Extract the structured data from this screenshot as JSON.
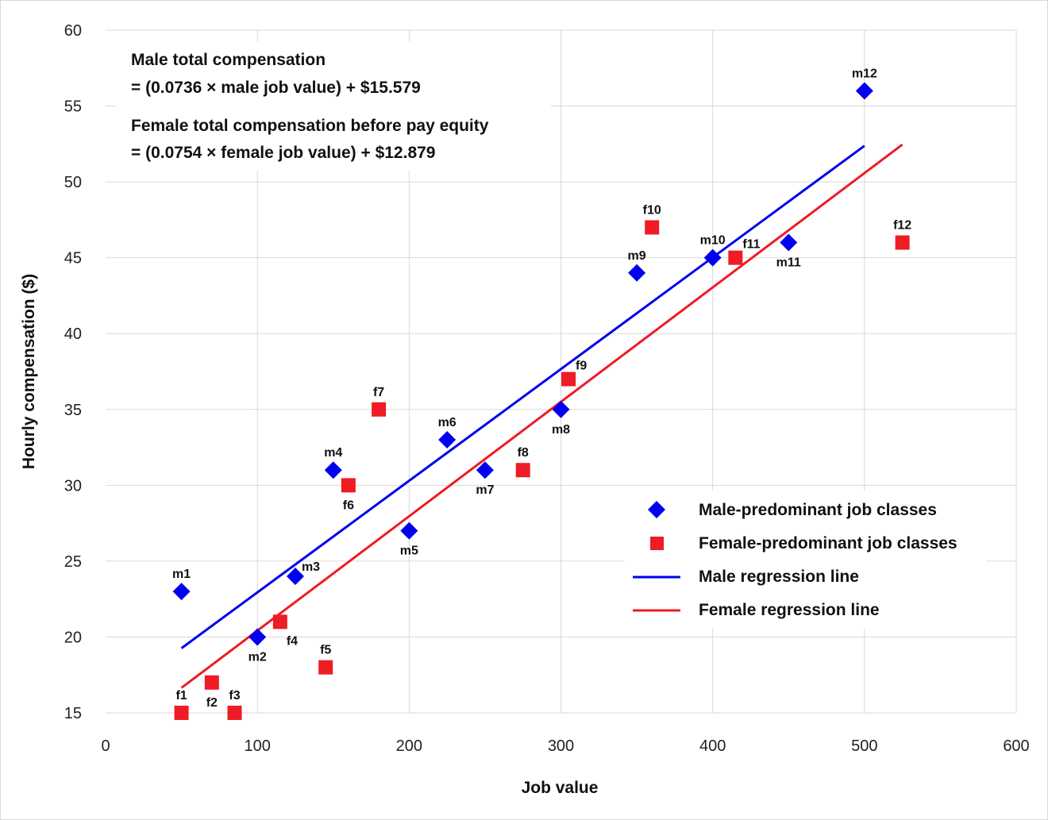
{
  "chart_data": {
    "type": "scatter",
    "xlabel": "Job value",
    "ylabel": "Hourly compensation ($)",
    "xlim": [
      0,
      600
    ],
    "ylim": [
      15,
      60
    ],
    "x_ticks": [
      0,
      100,
      200,
      300,
      400,
      500,
      600
    ],
    "y_ticks": [
      15,
      20,
      25,
      30,
      35,
      40,
      45,
      50,
      55,
      60
    ],
    "grid": true,
    "legend_position": "lower-right",
    "colors": {
      "male": "#0000ee",
      "female": "#ee1c24"
    },
    "annotations": [
      "Male total compensation",
      "= (0.0736 × male job value) + $15.579",
      "Female total compensation before pay equity",
      "= (0.0754 × female job value) + $12.879"
    ],
    "series": [
      {
        "name": "Male-predominant job classes",
        "marker": "diamond",
        "points": [
          {
            "label": "m1",
            "x": 50,
            "y": 23
          },
          {
            "label": "m2",
            "x": 100,
            "y": 20
          },
          {
            "label": "m3",
            "x": 125,
            "y": 24
          },
          {
            "label": "m4",
            "x": 150,
            "y": 31
          },
          {
            "label": "m5",
            "x": 200,
            "y": 27
          },
          {
            "label": "m6",
            "x": 225,
            "y": 33
          },
          {
            "label": "m7",
            "x": 250,
            "y": 31
          },
          {
            "label": "m8",
            "x": 300,
            "y": 35
          },
          {
            "label": "m9",
            "x": 350,
            "y": 44
          },
          {
            "label": "m10",
            "x": 400,
            "y": 45
          },
          {
            "label": "m11",
            "x": 450,
            "y": 46
          },
          {
            "label": "m12",
            "x": 500,
            "y": 56
          }
        ]
      },
      {
        "name": "Female-predominant job classes",
        "marker": "square",
        "points": [
          {
            "label": "f1",
            "x": 50,
            "y": 15
          },
          {
            "label": "f2",
            "x": 70,
            "y": 17
          },
          {
            "label": "f3",
            "x": 85,
            "y": 15
          },
          {
            "label": "f4",
            "x": 115,
            "y": 21
          },
          {
            "label": "f5",
            "x": 145,
            "y": 18
          },
          {
            "label": "f6",
            "x": 160,
            "y": 30
          },
          {
            "label": "f7",
            "x": 180,
            "y": 35
          },
          {
            "label": "f8",
            "x": 275,
            "y": 31
          },
          {
            "label": "f9",
            "x": 305,
            "y": 37
          },
          {
            "label": "f10",
            "x": 360,
            "y": 47
          },
          {
            "label": "f11",
            "x": 415,
            "y": 45
          },
          {
            "label": "f12",
            "x": 525,
            "y": 46
          }
        ]
      },
      {
        "name": "Male regression line",
        "type": "line",
        "slope": 0.0736,
        "intercept": 15.579,
        "x_range": [
          50,
          500
        ]
      },
      {
        "name": "Female regression line",
        "type": "line",
        "slope": 0.0754,
        "intercept": 12.879,
        "x_range": [
          50,
          525
        ]
      }
    ]
  }
}
